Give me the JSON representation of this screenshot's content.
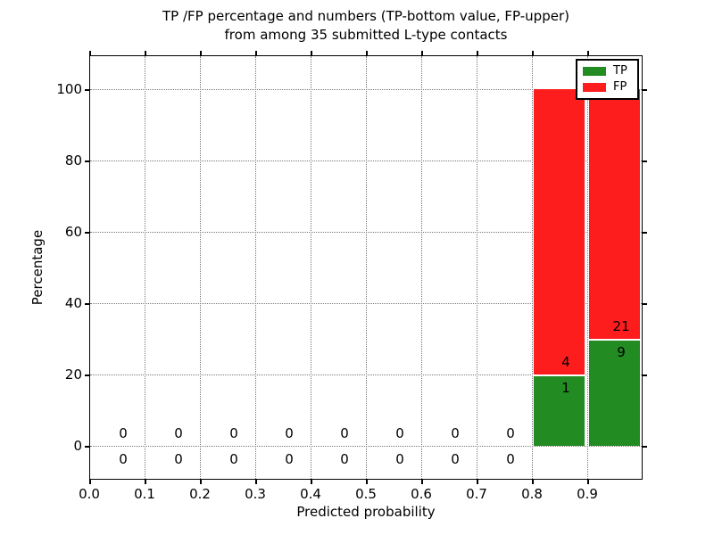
{
  "chart_data": {
    "type": "bar",
    "stacked": true,
    "title_line1": "TP /FP percentage and numbers (TP-bottom value, FP-upper)",
    "title_line2": "from among 35 submitted L-type contacts",
    "xlabel": "Predicted probability",
    "ylabel": "Percentage",
    "xlim": [
      0.0,
      1.0
    ],
    "ylim": [
      -9.5,
      109.5
    ],
    "grid": "dotted",
    "legend_position": "upper right",
    "y_ticks": {
      "values": [
        0,
        20,
        40,
        60,
        80,
        100
      ],
      "labels": [
        "0",
        "20",
        "40",
        "60",
        "80",
        "100"
      ]
    },
    "x_ticks": {
      "values": [
        0.0,
        0.1,
        0.2,
        0.3,
        0.4,
        0.5,
        0.6,
        0.7,
        0.8,
        0.9
      ],
      "labels": [
        "0.0",
        "0.1",
        "0.2",
        "0.3",
        "0.4",
        "0.5",
        "0.6",
        "0.7",
        "0.8",
        "0.9"
      ]
    },
    "series": [
      {
        "name": "TP",
        "color": "#228b22"
      },
      {
        "name": "FP",
        "color": "#fd1d1d"
      }
    ],
    "bins": [
      {
        "x0": 0.0,
        "x1": 0.1,
        "tp": 0,
        "fp": 0,
        "tp_pct": 0,
        "fp_pct": 0
      },
      {
        "x0": 0.1,
        "x1": 0.2,
        "tp": 0,
        "fp": 0,
        "tp_pct": 0,
        "fp_pct": 0
      },
      {
        "x0": 0.2,
        "x1": 0.3,
        "tp": 0,
        "fp": 0,
        "tp_pct": 0,
        "fp_pct": 0
      },
      {
        "x0": 0.3,
        "x1": 0.4,
        "tp": 0,
        "fp": 0,
        "tp_pct": 0,
        "fp_pct": 0
      },
      {
        "x0": 0.4,
        "x1": 0.5,
        "tp": 0,
        "fp": 0,
        "tp_pct": 0,
        "fp_pct": 0
      },
      {
        "x0": 0.5,
        "x1": 0.6,
        "tp": 0,
        "fp": 0,
        "tp_pct": 0,
        "fp_pct": 0
      },
      {
        "x0": 0.6,
        "x1": 0.7,
        "tp": 0,
        "fp": 0,
        "tp_pct": 0,
        "fp_pct": 0
      },
      {
        "x0": 0.7,
        "x1": 0.8,
        "tp": 0,
        "fp": 0,
        "tp_pct": 0,
        "fp_pct": 0
      },
      {
        "x0": 0.8,
        "x1": 0.9,
        "tp": 1,
        "fp": 4,
        "tp_pct": 20,
        "fp_pct": 80
      },
      {
        "x0": 0.9,
        "x1": 1.0,
        "tp": 9,
        "fp": 21,
        "tp_pct": 30,
        "fp_pct": 70
      }
    ],
    "colors": {
      "tp": "#228b22",
      "fp": "#fd1d1d",
      "grid": "#777777",
      "text": "#000000"
    }
  }
}
